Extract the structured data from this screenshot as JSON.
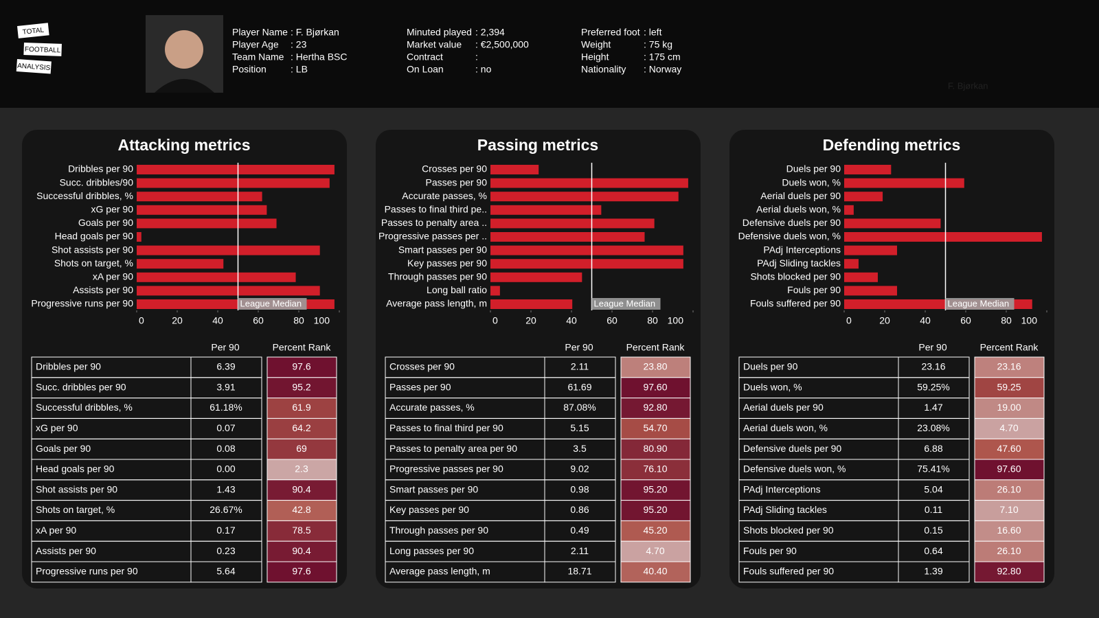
{
  "header": {
    "logo": [
      "TOTAL",
      "FOOTBALL",
      "ANALYSIS"
    ],
    "watermark": "F. Bjørkan",
    "info": [
      [
        [
          "Player Name",
          ": F. Bjørkan"
        ],
        [
          "Player Age",
          ": 23"
        ],
        [
          "Team Name",
          ": Hertha BSC"
        ],
        [
          "Position",
          ": LB"
        ]
      ],
      [
        [
          "Minuted played",
          ": 2,394"
        ],
        [
          "Market value",
          ": €2,500,000"
        ],
        [
          "Contract",
          ":"
        ],
        [
          "On Loan",
          ": no"
        ]
      ],
      [
        [
          "Preferred foot",
          ": left"
        ],
        [
          "Weight",
          ": 75 kg"
        ],
        [
          "Height",
          ": 175 cm"
        ],
        [
          "Nationality",
          ": Norway"
        ]
      ]
    ]
  },
  "chart_data": [
    {
      "type": "bar",
      "orientation": "horizontal",
      "title": "Attacking metrics",
      "categories": [
        "Dribbles per 90",
        "Succ. dribbles/90",
        "Successful dribbles, %",
        "xG per 90",
        "Goals per 90",
        "Head goals per 90",
        "Shot assists per 90",
        "Shots on target, %",
        "xA per 90",
        "Assists per 90",
        "Progressive runs per 90"
      ],
      "values": [
        97.6,
        95.2,
        61.9,
        64.2,
        69,
        2.3,
        90.4,
        42.8,
        78.5,
        90.4,
        97.6
      ],
      "color": "#d21f2a",
      "xlim": [
        0,
        100
      ],
      "xticks": [
        0,
        20,
        40,
        60,
        80,
        100
      ],
      "median": 50,
      "median_label": "League Median"
    },
    {
      "type": "bar",
      "orientation": "horizontal",
      "title": "Passing metrics",
      "categories": [
        "Crosses per 90",
        "Passes per 90",
        "Accurate passes, %",
        "Passes to final third pe..",
        "Passes to penalty area ..",
        "Progressive passes per ..",
        "Smart passes per 90",
        "Key passes per 90",
        "Through passes per 90",
        "Long ball ratio",
        "Average pass length, m"
      ],
      "values": [
        23.8,
        97.6,
        92.8,
        54.7,
        80.9,
        76.1,
        95.2,
        95.2,
        45.2,
        4.7,
        40.4
      ],
      "color": "#d21f2a",
      "xlim": [
        0,
        100
      ],
      "xticks": [
        0,
        20,
        40,
        60,
        80,
        100
      ],
      "median": 50,
      "median_label": "League Median"
    },
    {
      "type": "bar",
      "orientation": "horizontal",
      "title": "Defending metrics",
      "categories": [
        "Duels per 90",
        "Duels won, %",
        "Aerial duels per 90",
        "Aerial duels won, %",
        "Defensive duels per 90",
        "Defensive duels won, %",
        "PAdj Interceptions",
        "PAdj Sliding tackles",
        "Shots blocked per 90",
        "Fouls per 90",
        "Fouls suffered per 90"
      ],
      "values": [
        23.16,
        59.25,
        19,
        4.7,
        47.6,
        97.6,
        26.1,
        7.1,
        16.6,
        26.1,
        92.8
      ],
      "color": "#d21f2a",
      "xlim": [
        0,
        100
      ],
      "xticks": [
        0,
        20,
        40,
        60,
        80,
        100
      ],
      "median": 50,
      "median_label": "League Median"
    }
  ],
  "tables": [
    {
      "columns": [
        "Per 90",
        "Percent Rank"
      ],
      "rows": [
        [
          "Dribbles per 90",
          "6.39",
          "97.6"
        ],
        [
          "Succ. dribbles per 90",
          "3.91",
          "95.2"
        ],
        [
          "Successful dribbles, %",
          "61.18%",
          "61.9"
        ],
        [
          "xG per 90",
          "0.07",
          "64.2"
        ],
        [
          "Goals per 90",
          "0.08",
          "69"
        ],
        [
          "Head goals per 90",
          "0.00",
          "2.3"
        ],
        [
          "Shot assists per 90",
          "1.43",
          "90.4"
        ],
        [
          "Shots on target, %",
          "26.67%",
          "42.8"
        ],
        [
          "xA per 90",
          "0.17",
          "78.5"
        ],
        [
          "Assists per 90",
          "0.23",
          "90.4"
        ],
        [
          "Progressive runs per 90",
          "5.64",
          "97.6"
        ]
      ]
    },
    {
      "columns": [
        "Per 90",
        "Percent Rank"
      ],
      "rows": [
        [
          "Crosses per 90",
          "2.11",
          "23.80"
        ],
        [
          "Passes per 90",
          "61.69",
          "97.60"
        ],
        [
          "Accurate passes, %",
          "87.08%",
          "92.80"
        ],
        [
          "Passes to final third per 90",
          "5.15",
          "54.70"
        ],
        [
          "Passes to penalty area per 90",
          "3.5",
          "80.90"
        ],
        [
          "Progressive passes per 90",
          "9.02",
          "76.10"
        ],
        [
          "Smart passes per 90",
          "0.98",
          "95.20"
        ],
        [
          "Key passes per 90",
          "0.86",
          "95.20"
        ],
        [
          "Through passes per 90",
          "0.49",
          "45.20"
        ],
        [
          "Long passes per 90",
          "2.11",
          "4.70"
        ],
        [
          "Average pass length, m",
          "18.71",
          "40.40"
        ]
      ]
    },
    {
      "columns": [
        "Per 90",
        "Percent Rank"
      ],
      "rows": [
        [
          "Duels per 90",
          "23.16",
          "23.16"
        ],
        [
          "Duels won, %",
          "59.25%",
          "59.25"
        ],
        [
          "Aerial duels per 90",
          "1.47",
          "19.00"
        ],
        [
          "Aerial duels won, %",
          "23.08%",
          "4.70"
        ],
        [
          "Defensive duels per 90",
          "6.88",
          "47.60"
        ],
        [
          "Defensive duels won, %",
          "75.41%",
          "97.60"
        ],
        [
          "PAdj Interceptions",
          "5.04",
          "26.10"
        ],
        [
          "PAdj Sliding tackles",
          "0.11",
          "7.10"
        ],
        [
          "Shots blocked per 90",
          "0.15",
          "16.60"
        ],
        [
          "Fouls per 90",
          "0.64",
          "26.10"
        ],
        [
          "Fouls suffered per 90",
          "1.39",
          "92.80"
        ]
      ]
    }
  ]
}
